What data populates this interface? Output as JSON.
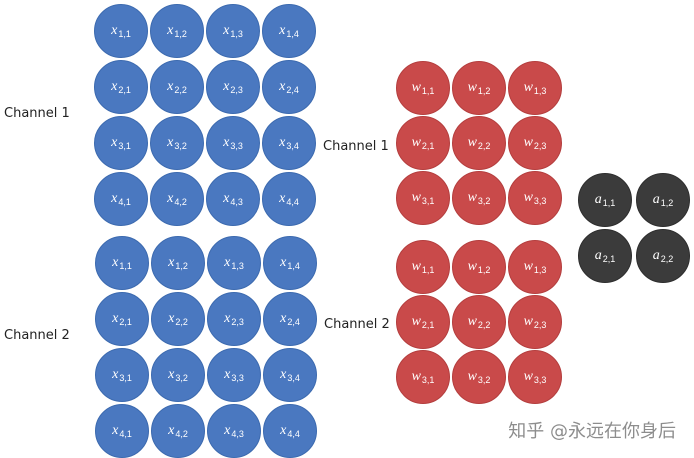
{
  "labels": {
    "x_channel_1": "Channel 1",
    "x_channel_2": "Channel 2",
    "w_channel_1": "Channel 1",
    "w_channel_2": "Channel 2"
  },
  "colors": {
    "input": "#4a78c0",
    "weight": "#c94a4a",
    "output": "#3b3b3b"
  },
  "input_channels": [
    {
      "rows": [
        [
          "x|1,1",
          "x|1,2",
          "x|1,3",
          "x|1,4"
        ],
        [
          "x|2,1",
          "x|2,2",
          "x|2,3",
          "x|2,4"
        ],
        [
          "x|3,1",
          "x|3,2",
          "x|3,3",
          "x|3,4"
        ],
        [
          "x|4,1",
          "x|4,2",
          "x|4,3",
          "x|4,4"
        ]
      ]
    },
    {
      "rows": [
        [
          "x|1,1",
          "x|1,2",
          "x|1,3",
          "x|1,4"
        ],
        [
          "x|2,1",
          "x|2,2",
          "x|2,3",
          "x|2,4"
        ],
        [
          "x|3,1",
          "x|3,2",
          "x|3,3",
          "x|3,4"
        ],
        [
          "x|4,1",
          "x|4,2",
          "x|4,3",
          "x|4,4"
        ]
      ]
    }
  ],
  "weight_channels": [
    {
      "rows": [
        [
          "w|1,1",
          "w|1,2",
          "w|1,3"
        ],
        [
          "w|2,1",
          "w|2,2",
          "w|2,3"
        ],
        [
          "w|3,1",
          "w|3,2",
          "w|3,3"
        ]
      ]
    },
    {
      "rows": [
        [
          "w|1,1",
          "w|1,2",
          "w|1,3"
        ],
        [
          "w|2,1",
          "w|2,2",
          "w|2,3"
        ],
        [
          "w|3,1",
          "w|3,2",
          "w|3,3"
        ]
      ]
    }
  ],
  "output": {
    "rows": [
      [
        "a|1,1",
        "a|1,2"
      ],
      [
        "a|2,1",
        "a|2,2"
      ]
    ]
  },
  "watermark": "知乎 @永远在你身后"
}
